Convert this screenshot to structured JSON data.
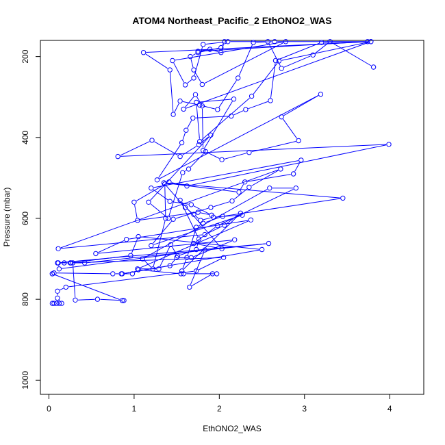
{
  "chart_data": {
    "type": "line",
    "title": "ATOM4 Northeast_Pacific_2 EthONO2_WAS",
    "xlabel": "EthONO2_WAS",
    "ylabel": "Pressure (mbar)",
    "xlim": [
      -0.1,
      4.4
    ],
    "ylim": [
      1035,
      160
    ],
    "y_reversed": true,
    "x_ticks": [
      "0",
      "1",
      "2",
      "3",
      "4"
    ],
    "y_ticks": [
      "200",
      "400",
      "600",
      "800",
      "1000"
    ],
    "grid": false,
    "legend": "none",
    "color": "#0000ff",
    "marker": "open-circle",
    "series": [
      {
        "values": [
          [
            0.04,
            810
          ],
          [
            0.06,
            810
          ],
          [
            0.09,
            810
          ],
          [
            0.12,
            810
          ],
          [
            0.15,
            810
          ],
          [
            0.1,
            797
          ],
          [
            0.1,
            780
          ],
          [
            0.2,
            770
          ],
          [
            1.73,
            730
          ],
          [
            2.05,
            697
          ],
          [
            0.28,
            710
          ],
          [
            0.31,
            802
          ],
          [
            0.57,
            800
          ],
          [
            0.88,
            803
          ],
          [
            0.86,
            803
          ],
          [
            0.04,
            737
          ],
          [
            0.06,
            735
          ],
          [
            0.04,
            737
          ],
          [
            0.06,
            735
          ],
          [
            0.75,
            737
          ],
          [
            0.85,
            737
          ],
          [
            0.98,
            737
          ],
          [
            1.05,
            727
          ],
          [
            1.55,
            737
          ],
          [
            1.58,
            737
          ],
          [
            1.97,
            737
          ],
          [
            1.92,
            737
          ],
          [
            1.65,
            770
          ],
          [
            1.83,
            678
          ],
          [
            0.12,
            725
          ],
          [
            0.11,
            710
          ],
          [
            0.18,
            710
          ],
          [
            0.26,
            710
          ],
          [
            0.42,
            710
          ],
          [
            2.58,
            662
          ],
          [
            0.1,
            710
          ],
          [
            0.25,
            710
          ],
          [
            0.96,
            692
          ],
          [
            1.05,
            645
          ],
          [
            2.5,
            677
          ],
          [
            0.86,
            737
          ],
          [
            1.42,
            717
          ],
          [
            1.5,
            697
          ],
          [
            1.67,
            697
          ],
          [
            2.18,
            653
          ],
          [
            0.55,
            687
          ],
          [
            0.91,
            652
          ],
          [
            2.37,
            604
          ],
          [
            1.04,
            725
          ],
          [
            1.29,
            725
          ],
          [
            1.43,
            665
          ],
          [
            1.51,
            693
          ],
          [
            1.73,
            677
          ],
          [
            1.76,
            651
          ],
          [
            1.54,
            555
          ],
          [
            2.03,
            675
          ],
          [
            1.7,
            662
          ],
          [
            1.98,
            618
          ],
          [
            2.9,
            525
          ],
          [
            2.59,
            525
          ],
          [
            1.1,
            700
          ],
          [
            1.22,
            725
          ],
          [
            1.37,
            600
          ],
          [
            1.36,
            515
          ],
          [
            1.6,
            573
          ],
          [
            1.7,
            590
          ],
          [
            1.78,
            605
          ],
          [
            1.93,
            597
          ],
          [
            2.27,
            592
          ],
          [
            1.2,
            667
          ],
          [
            1.46,
            602
          ],
          [
            1.9,
            573
          ],
          [
            2.15,
            557
          ],
          [
            2.35,
            523
          ],
          [
            2.72,
            478
          ],
          [
            0.11,
            675
          ],
          [
            1.83,
            640
          ],
          [
            2.06,
            617
          ],
          [
            2.25,
            587
          ],
          [
            1.56,
            730
          ],
          [
            1.62,
            697
          ],
          [
            1.73,
            622
          ],
          [
            1.81,
            612
          ],
          [
            2.04,
            595
          ],
          [
            3.45,
            550
          ],
          [
            1.35,
            512
          ],
          [
            2.23,
            535
          ],
          [
            2.3,
            510
          ],
          [
            2.87,
            490
          ],
          [
            2.96,
            456
          ],
          [
            1.2,
            525
          ],
          [
            1.42,
            558
          ],
          [
            1.67,
            566
          ],
          [
            1.91,
            592
          ],
          [
            1.75,
            585
          ],
          [
            1.04,
            605
          ],
          [
            1.0,
            560
          ],
          [
            1.41,
            510
          ],
          [
            1.62,
            520
          ],
          [
            3.99,
            417
          ],
          [
            0.81,
            447
          ],
          [
            1.21,
            407
          ],
          [
            1.54,
            447
          ],
          [
            1.76,
            418
          ],
          [
            1.9,
            394
          ],
          [
            1.17,
            560
          ],
          [
            1.4,
            600
          ],
          [
            1.57,
            487
          ],
          [
            1.64,
            478
          ],
          [
            1.84,
            435
          ],
          [
            2.03,
            455
          ],
          [
            2.35,
            437
          ],
          [
            2.93,
            408
          ],
          [
            2.73,
            349
          ],
          [
            3.19,
            293
          ],
          [
            1.27,
            505
          ],
          [
            1.56,
            413
          ],
          [
            1.61,
            382
          ],
          [
            1.69,
            352
          ],
          [
            2.14,
            347
          ],
          [
            2.31,
            331
          ],
          [
            2.6,
            309
          ],
          [
            2.66,
            210
          ],
          [
            3.2,
            165
          ],
          [
            3.78,
            163
          ],
          [
            1.58,
            330
          ],
          [
            1.72,
            294
          ],
          [
            1.8,
            322
          ],
          [
            1.81,
            432
          ],
          [
            2.17,
            305
          ],
          [
            1.73,
            313
          ],
          [
            1.77,
            410
          ],
          [
            2.38,
            298
          ],
          [
            2.7,
            211
          ],
          [
            3.78,
            163
          ],
          [
            1.11,
            190
          ],
          [
            1.42,
            233
          ],
          [
            1.46,
            343
          ],
          [
            1.54,
            310
          ],
          [
            1.77,
            320
          ],
          [
            1.98,
            331
          ],
          [
            2.22,
            253
          ],
          [
            2.4,
            165
          ],
          [
            2.65,
            163
          ],
          [
            3.74,
            163
          ],
          [
            1.75,
            187
          ],
          [
            1.89,
            182
          ],
          [
            2.02,
            190
          ],
          [
            2.06,
            163
          ],
          [
            2.02,
            178
          ],
          [
            1.75,
            190
          ],
          [
            1.66,
            200
          ],
          [
            1.7,
            233
          ],
          [
            1.8,
            269
          ],
          [
            2.78,
            163
          ],
          [
            1.45,
            210
          ],
          [
            1.6,
            270
          ],
          [
            1.7,
            253
          ],
          [
            1.81,
            170
          ],
          [
            2.1,
            163
          ],
          [
            2.57,
            163
          ],
          [
            2.73,
            229
          ],
          [
            3.1,
            196
          ],
          [
            3.3,
            163
          ],
          [
            3.81,
            226
          ]
        ]
      }
    ]
  }
}
